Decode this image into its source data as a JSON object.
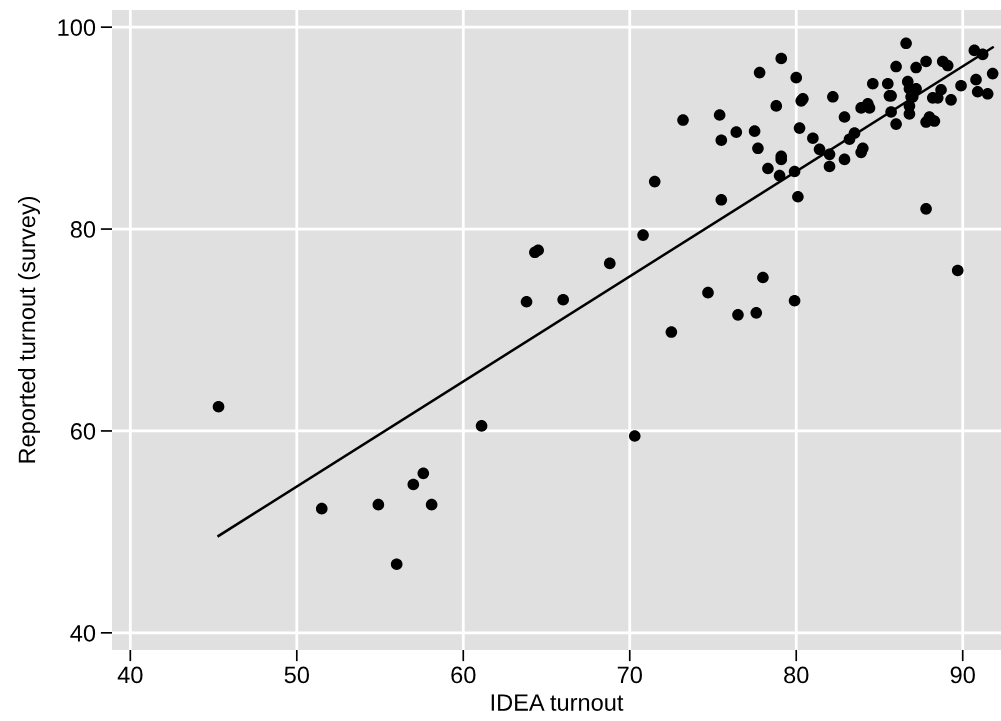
{
  "chart_data": {
    "type": "scatter",
    "xlabel": "IDEA turnout",
    "ylabel": "Reported turnout (survey)",
    "xlim": [
      38.9,
      92.3
    ],
    "ylim": [
      38.3,
      101.7
    ],
    "xticks": [
      40,
      50,
      60,
      70,
      80,
      90
    ],
    "yticks": [
      40,
      60,
      80,
      100
    ],
    "grid": true,
    "series": [
      {
        "color": "#000000",
        "marker": "circle",
        "x": [
          45.3,
          51.5,
          54.9,
          56.0,
          57.0,
          57.6,
          58.1,
          61.1,
          63.8,
          64.3,
          64.5,
          66.0,
          68.8,
          70.8,
          71.5,
          73.2,
          72.5,
          74.7,
          76.5,
          77.6,
          78.0,
          79.9,
          80.1,
          75.5,
          75.4,
          75.5,
          76.4,
          77.5,
          77.7,
          77.8,
          79.1,
          78.8,
          80.0,
          80.4,
          80.3,
          80.2,
          78.3,
          79.0,
          79.1,
          79.1,
          79.9,
          81.0,
          81.4,
          82.0,
          82.0,
          82.2,
          82.9,
          82.9,
          83.2,
          83.5,
          83.9,
          84.3,
          84.4,
          84.0,
          83.9,
          84.6,
          85.5,
          85.7,
          85.6,
          85.7,
          86.0,
          86.0,
          86.6,
          86.7,
          86.8,
          87.2,
          86.9,
          87.0,
          86.8,
          86.8,
          87.2,
          87.8,
          87.8,
          87.8,
          88.3,
          88.0,
          88.2,
          88.5,
          88.7,
          88.8,
          89.1,
          89.3,
          89.7,
          89.9,
          90.8,
          90.9,
          90.7,
          91.2,
          91.5,
          91.8,
          70.3
        ],
        "values": [
          62.4,
          52.3,
          52.7,
          46.8,
          54.7,
          55.8,
          52.7,
          60.5,
          72.8,
          77.7,
          77.9,
          73.0,
          76.6,
          79.4,
          84.7,
          90.8,
          69.8,
          73.7,
          71.5,
          71.7,
          75.2,
          72.9,
          83.2,
          82.9,
          91.3,
          88.8,
          89.6,
          89.7,
          88.0,
          95.5,
          96.9,
          92.2,
          95.0,
          92.9,
          92.7,
          90.0,
          86.0,
          85.3,
          87.2,
          86.9,
          85.7,
          89.0,
          87.9,
          87.4,
          86.2,
          93.1,
          91.1,
          86.9,
          88.9,
          89.5,
          92.0,
          92.4,
          92.0,
          88.0,
          87.6,
          94.4,
          94.4,
          93.2,
          93.2,
          91.6,
          90.4,
          96.1,
          98.4,
          94.6,
          93.9,
          93.9,
          93.1,
          93.1,
          92.2,
          91.4,
          96.0,
          96.6,
          82.0,
          90.6,
          90.7,
          91.1,
          93.0,
          93.0,
          93.8,
          96.6,
          96.2,
          92.8,
          75.9,
          94.2,
          94.8,
          93.6,
          97.7,
          97.3,
          93.4,
          95.4,
          59.5
        ]
      },
      {
        "type": "line",
        "color": "#000000",
        "x": [
          45.3,
          91.8
        ],
        "values": [
          49.6,
          98.0
        ]
      }
    ]
  }
}
